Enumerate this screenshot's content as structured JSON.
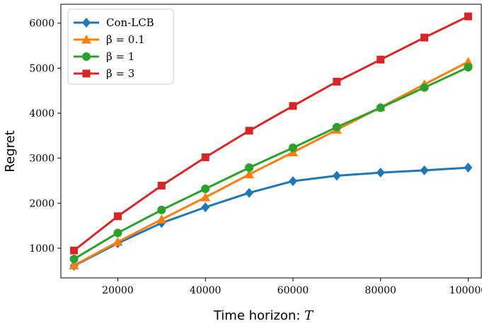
{
  "chart_data": {
    "type": "line",
    "title": "",
    "xlabel": "Time horizon: ",
    "xlabel_symbol": "T",
    "ylabel": "Regret",
    "xlim": [
      7000,
      103000
    ],
    "ylim": [
      340,
      6420
    ],
    "xticks": [
      20000,
      40000,
      60000,
      80000,
      100000
    ],
    "yticks": [
      1000,
      2000,
      3000,
      4000,
      5000,
      6000
    ],
    "grid": false,
    "legend_position": "top-left",
    "x": [
      10000,
      20000,
      30000,
      40000,
      50000,
      60000,
      70000,
      80000,
      90000,
      100000
    ],
    "series": [
      {
        "name": "Con-LCB",
        "color": "#1f77b4",
        "marker": "diamond",
        "values": [
          610,
          1110,
          1560,
          1910,
          2230,
          2490,
          2610,
          2680,
          2730,
          2790
        ]
      },
      {
        "name": "β = 0.1",
        "color": "#ff7f0e",
        "marker": "triangle",
        "values": [
          620,
          1140,
          1640,
          2130,
          2640,
          3130,
          3630,
          4130,
          4640,
          5140
        ]
      },
      {
        "name": "β = 1",
        "color": "#2ca02c",
        "marker": "circle",
        "values": [
          760,
          1340,
          1850,
          2320,
          2790,
          3230,
          3690,
          4120,
          4570,
          5020
        ]
      },
      {
        "name": "β = 3",
        "color": "#d62728",
        "marker": "square",
        "values": [
          950,
          1710,
          2390,
          3020,
          3610,
          4160,
          4700,
          5190,
          5680,
          6150
        ]
      }
    ]
  }
}
